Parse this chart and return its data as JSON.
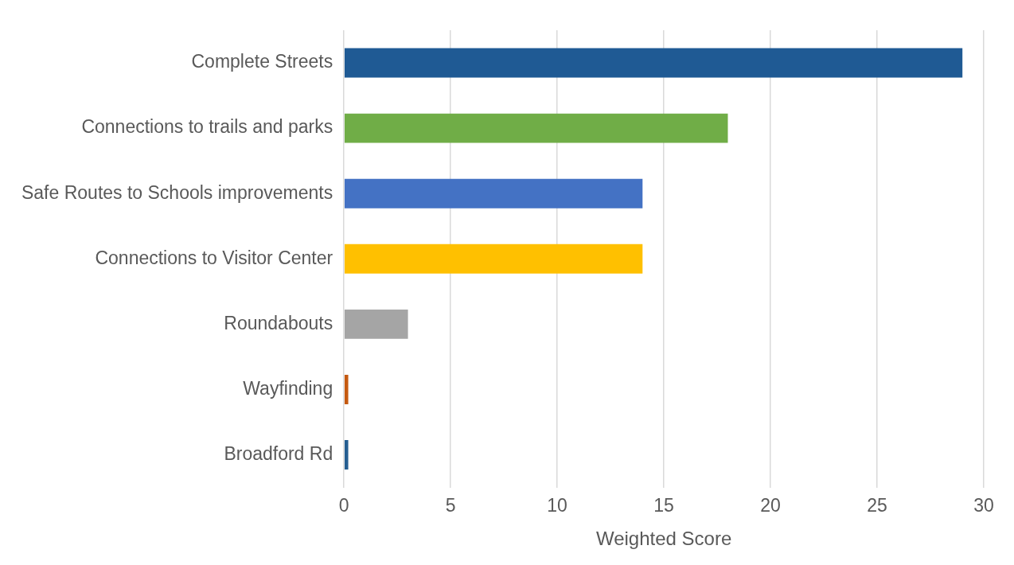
{
  "chart_data": {
    "type": "bar",
    "orientation": "horizontal",
    "xlabel": "Weighted Score",
    "categories": [
      "Complete Streets",
      "Connections to trails and parks",
      "Safe Routes to Schools improvements",
      "Connections to Visitor Center",
      "Roundabouts",
      "Wayfinding",
      "Broadford Rd"
    ],
    "values": [
      29,
      18,
      14,
      14,
      3,
      0.2,
      0.2
    ],
    "colors": [
      "#1f5a94",
      "#70ad47",
      "#4472c4",
      "#ffc000",
      "#a5a5a5",
      "#c55a11",
      "#255e91"
    ],
    "xlim": [
      0,
      30
    ],
    "xticks": [
      0,
      5,
      10,
      15,
      20,
      25,
      30
    ],
    "grid": "x",
    "legend": false
  }
}
